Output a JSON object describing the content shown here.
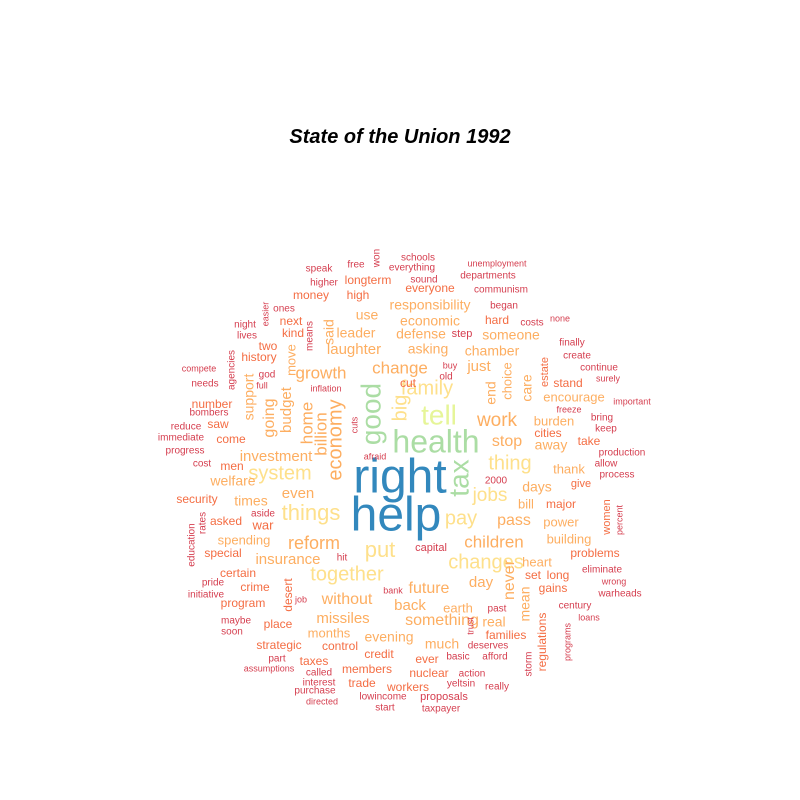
{
  "chart_data": {
    "type": "wordcloud",
    "title": "State of the Union 1992",
    "palette": {
      "1": "#d53e4f",
      "2": "#f46d43",
      "3": "#fdae61",
      "4": "#fee08b",
      "5": "#e6f598",
      "6": "#abdda4",
      "7": "#66c2a5",
      "8": "#3288bd"
    },
    "words": [
      {
        "w": "right",
        "c": 8
      },
      {
        "w": "help",
        "c": 8
      },
      {
        "w": "health",
        "c": 6
      },
      {
        "w": "good",
        "c": 6
      },
      {
        "w": "tell",
        "c": 5
      },
      {
        "w": "tax",
        "c": 6
      },
      {
        "w": "family",
        "c": 4
      },
      {
        "w": "big",
        "c": 4
      },
      {
        "w": "economy",
        "c": 3
      },
      {
        "w": "thing",
        "c": 4
      },
      {
        "w": "system",
        "c": 4
      },
      {
        "w": "things",
        "c": 4
      },
      {
        "w": "put",
        "c": 4
      },
      {
        "w": "pay",
        "c": 4
      },
      {
        "w": "together",
        "c": 4
      },
      {
        "w": "changes",
        "c": 4
      },
      {
        "w": "children",
        "c": 3
      },
      {
        "w": "jobs",
        "c": 4
      },
      {
        "w": "work",
        "c": 3
      },
      {
        "w": "reform",
        "c": 3
      },
      {
        "w": "growth",
        "c": 3
      },
      {
        "w": "change",
        "c": 3
      },
      {
        "w": "home",
        "c": 3
      },
      {
        "w": "billion",
        "c": 3
      },
      {
        "w": "budget",
        "c": 3
      },
      {
        "w": "going",
        "c": 3
      },
      {
        "w": "stop",
        "c": 3
      },
      {
        "w": "pass",
        "c": 3
      },
      {
        "w": "future",
        "c": 3
      },
      {
        "w": "something",
        "c": 3
      },
      {
        "w": "without",
        "c": 3
      },
      {
        "w": "investment",
        "c": 3
      },
      {
        "w": "insurance",
        "c": 3
      },
      {
        "w": "laughter",
        "c": 3
      },
      {
        "w": "even",
        "c": 3
      },
      {
        "w": "back",
        "c": 3
      },
      {
        "w": "missiles",
        "c": 3
      },
      {
        "w": "day",
        "c": 3
      },
      {
        "w": "never",
        "c": 3
      },
      {
        "w": "just",
        "c": 3
      },
      {
        "w": "responsibility",
        "c": 3
      },
      {
        "w": "economic",
        "c": 3
      },
      {
        "w": "someone",
        "c": 3
      },
      {
        "w": "asking",
        "c": 3
      },
      {
        "w": "use",
        "c": 3
      },
      {
        "w": "leader",
        "c": 3
      },
      {
        "w": "defense",
        "c": 3
      },
      {
        "w": "chamber",
        "c": 3
      },
      {
        "w": "days",
        "c": 3
      },
      {
        "w": "much",
        "c": 3
      },
      {
        "w": "real",
        "c": 3
      },
      {
        "w": "months",
        "c": 3
      },
      {
        "w": "evening",
        "c": 3
      },
      {
        "w": "times",
        "c": 3
      },
      {
        "w": "spending",
        "c": 3
      },
      {
        "w": "support",
        "c": 3
      },
      {
        "w": "welfare",
        "c": 3
      },
      {
        "w": "said",
        "c": 3
      },
      {
        "w": "move",
        "c": 3
      },
      {
        "w": "end",
        "c": 3
      },
      {
        "w": "choice",
        "c": 3
      },
      {
        "w": "care",
        "c": 3
      },
      {
        "w": "thank",
        "c": 3
      },
      {
        "w": "away",
        "c": 3
      },
      {
        "w": "burden",
        "c": 3
      },
      {
        "w": "encourage",
        "c": 3
      },
      {
        "w": "mean",
        "c": 3
      },
      {
        "w": "heart",
        "c": 3
      },
      {
        "w": "building",
        "c": 3
      },
      {
        "w": "power",
        "c": 3
      },
      {
        "w": "earth",
        "c": 3
      },
      {
        "w": "bill",
        "c": 3
      },
      {
        "w": "cities",
        "c": 2
      },
      {
        "w": "women",
        "c": 2
      },
      {
        "w": "major",
        "c": 2
      },
      {
        "w": "give",
        "c": 2
      },
      {
        "w": "stand",
        "c": 2
      },
      {
        "w": "estate",
        "c": 2
      },
      {
        "w": "take",
        "c": 2
      },
      {
        "w": "regulations",
        "c": 2
      },
      {
        "w": "gains",
        "c": 2
      },
      {
        "w": "long",
        "c": 2
      },
      {
        "w": "set",
        "c": 2
      },
      {
        "w": "problems",
        "c": 2
      },
      {
        "w": "desert",
        "c": 2
      },
      {
        "w": "families",
        "c": 2
      },
      {
        "w": "program",
        "c": 2
      },
      {
        "w": "certain",
        "c": 2
      },
      {
        "w": "war",
        "c": 2
      },
      {
        "w": "special",
        "c": 2
      },
      {
        "w": "asked",
        "c": 2
      },
      {
        "w": "security",
        "c": 2
      },
      {
        "w": "come",
        "c": 2
      },
      {
        "w": "men",
        "c": 2
      },
      {
        "w": "saw",
        "c": 2
      },
      {
        "w": "number",
        "c": 2
      },
      {
        "w": "history",
        "c": 2
      },
      {
        "w": "two",
        "c": 2
      },
      {
        "w": "kind",
        "c": 2
      },
      {
        "w": "next",
        "c": 2
      },
      {
        "w": "money",
        "c": 2
      },
      {
        "w": "high",
        "c": 2
      },
      {
        "w": "longterm",
        "c": 2
      },
      {
        "w": "everyone",
        "c": 2
      },
      {
        "w": "hard",
        "c": 2
      },
      {
        "w": "cut",
        "c": 2
      },
      {
        "w": "place",
        "c": 2
      },
      {
        "w": "strategic",
        "c": 2
      },
      {
        "w": "control",
        "c": 2
      },
      {
        "w": "taxes",
        "c": 2
      },
      {
        "w": "members",
        "c": 2
      },
      {
        "w": "credit",
        "c": 2
      },
      {
        "w": "ever",
        "c": 2
      },
      {
        "w": "nuclear",
        "c": 2
      },
      {
        "w": "workers",
        "c": 2
      },
      {
        "w": "trade",
        "c": 2
      },
      {
        "w": "crime",
        "c": 2
      },
      {
        "w": "capital",
        "c": 1
      },
      {
        "w": "hit",
        "c": 1
      },
      {
        "w": "2000",
        "c": 1
      },
      {
        "w": "cuts",
        "c": 1
      },
      {
        "w": "afraid",
        "c": 1
      },
      {
        "w": "inflation",
        "c": 1
      },
      {
        "w": "full",
        "c": 1
      },
      {
        "w": "god",
        "c": 1
      },
      {
        "w": "means",
        "c": 1
      },
      {
        "w": "old",
        "c": 1
      },
      {
        "w": "buy",
        "c": 1
      },
      {
        "w": "step",
        "c": 1
      },
      {
        "w": "bank",
        "c": 1
      },
      {
        "w": "job",
        "c": 1
      },
      {
        "w": "trust",
        "c": 1
      },
      {
        "w": "past",
        "c": 1
      },
      {
        "w": "basic",
        "c": 1
      },
      {
        "w": "deserves",
        "c": 1
      },
      {
        "w": "afford",
        "c": 1
      },
      {
        "w": "action",
        "c": 1
      },
      {
        "w": "yeltsin",
        "c": 1
      },
      {
        "w": "really",
        "c": 1
      },
      {
        "w": "proposals",
        "c": 1
      },
      {
        "w": "lowincome",
        "c": 1
      },
      {
        "w": "start",
        "c": 1
      },
      {
        "w": "taxpayer",
        "c": 1
      },
      {
        "w": "directed",
        "c": 1
      },
      {
        "w": "purchase",
        "c": 1
      },
      {
        "w": "interest",
        "c": 1
      },
      {
        "w": "called",
        "c": 1
      },
      {
        "w": "assumptions",
        "c": 1
      },
      {
        "w": "part",
        "c": 1
      },
      {
        "w": "soon",
        "c": 1
      },
      {
        "w": "maybe",
        "c": 1
      },
      {
        "w": "initiative",
        "c": 1
      },
      {
        "w": "pride",
        "c": 1
      },
      {
        "w": "education",
        "c": 1
      },
      {
        "w": "rates",
        "c": 1
      },
      {
        "w": "aside",
        "c": 1
      },
      {
        "w": "cost",
        "c": 1
      },
      {
        "w": "progress",
        "c": 1
      },
      {
        "w": "immediate",
        "c": 1
      },
      {
        "w": "reduce",
        "c": 1
      },
      {
        "w": "bombers",
        "c": 1
      },
      {
        "w": "needs",
        "c": 1
      },
      {
        "w": "compete",
        "c": 1
      },
      {
        "w": "agencies",
        "c": 1
      },
      {
        "w": "lives",
        "c": 1
      },
      {
        "w": "night",
        "c": 1
      },
      {
        "w": "easier",
        "c": 1
      },
      {
        "w": "ones",
        "c": 1
      },
      {
        "w": "speak",
        "c": 1
      },
      {
        "w": "higher",
        "c": 1
      },
      {
        "w": "free",
        "c": 1
      },
      {
        "w": "won",
        "c": 1
      },
      {
        "w": "schools",
        "c": 1
      },
      {
        "w": "everything",
        "c": 1
      },
      {
        "w": "sound",
        "c": 1
      },
      {
        "w": "unemployment",
        "c": 1
      },
      {
        "w": "departments",
        "c": 1
      },
      {
        "w": "communism",
        "c": 1
      },
      {
        "w": "began",
        "c": 1
      },
      {
        "w": "costs",
        "c": 1
      },
      {
        "w": "none",
        "c": 1
      },
      {
        "w": "finally",
        "c": 1
      },
      {
        "w": "create",
        "c": 1
      },
      {
        "w": "continue",
        "c": 1
      },
      {
        "w": "surely",
        "c": 1
      },
      {
        "w": "important",
        "c": 1
      },
      {
        "w": "freeze",
        "c": 1
      },
      {
        "w": "bring",
        "c": 1
      },
      {
        "w": "keep",
        "c": 1
      },
      {
        "w": "production",
        "c": 1
      },
      {
        "w": "allow",
        "c": 1
      },
      {
        "w": "process",
        "c": 1
      },
      {
        "w": "percent",
        "c": 1
      },
      {
        "w": "eliminate",
        "c": 1
      },
      {
        "w": "wrong",
        "c": 1
      },
      {
        "w": "warheads",
        "c": 1
      },
      {
        "w": "century",
        "c": 1
      },
      {
        "w": "loans",
        "c": 1
      },
      {
        "w": "programs",
        "c": 1
      },
      {
        "w": "storm",
        "c": 1
      }
    ]
  }
}
